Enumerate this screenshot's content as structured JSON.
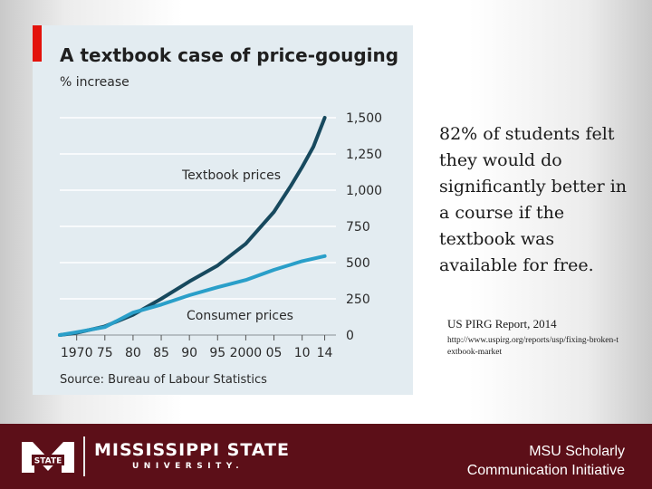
{
  "chart_data": {
    "type": "line",
    "title": "A textbook case of price-gouging",
    "ylabel": "% increase",
    "source": "Source: Bureau of Labour Statistics",
    "ylim": [
      0,
      1500
    ],
    "y_ticks": [
      0,
      250,
      500,
      750,
      1000,
      1250,
      1500
    ],
    "y_tick_labels": [
      "0",
      "250",
      "500",
      "750",
      "1,000",
      "1,250",
      "1,500"
    ],
    "xlim": [
      1967,
      2016
    ],
    "x_ticks": [
      1970,
      1975,
      1980,
      1985,
      1990,
      1995,
      2000,
      2005,
      2010,
      2014
    ],
    "x_tick_labels": [
      "1970",
      "75",
      "80",
      "85",
      "90",
      "95",
      "2000",
      "05",
      "10",
      "14"
    ],
    "series": [
      {
        "name": "Textbook prices",
        "color": "#17495e",
        "x": [
          1967,
          1970,
          1975,
          1980,
          1985,
          1990,
          1995,
          2000,
          2005,
          2008,
          2010,
          2012,
          2014
        ],
        "values": [
          0,
          15,
          60,
          140,
          250,
          370,
          480,
          630,
          850,
          1030,
          1160,
          1300,
          1500
        ]
      },
      {
        "name": "Consumer prices",
        "color": "#2a9fc9",
        "x": [
          1967,
          1970,
          1975,
          1980,
          1985,
          1990,
          1995,
          2000,
          2005,
          2010,
          2014
        ],
        "values": [
          0,
          20,
          55,
          155,
          210,
          275,
          330,
          380,
          450,
          510,
          545
        ]
      }
    ]
  },
  "quote": {
    "text": "82% of students felt they would do significantly better in a course if the textbook was available for free.",
    "citation": "US PIRG Report, 2014",
    "url": "http://www.uspirg.org/reports/usp/fixing-broken-textbook-market"
  },
  "footer": {
    "university_name": "MISSISSIPPI STATE",
    "university_sub": "UNIVERSITY.",
    "logo_text": "STATE",
    "initiative_line1": "MSU Scholarly",
    "initiative_line2": "Communication Initiative",
    "brand_color": "#5c0f18"
  }
}
